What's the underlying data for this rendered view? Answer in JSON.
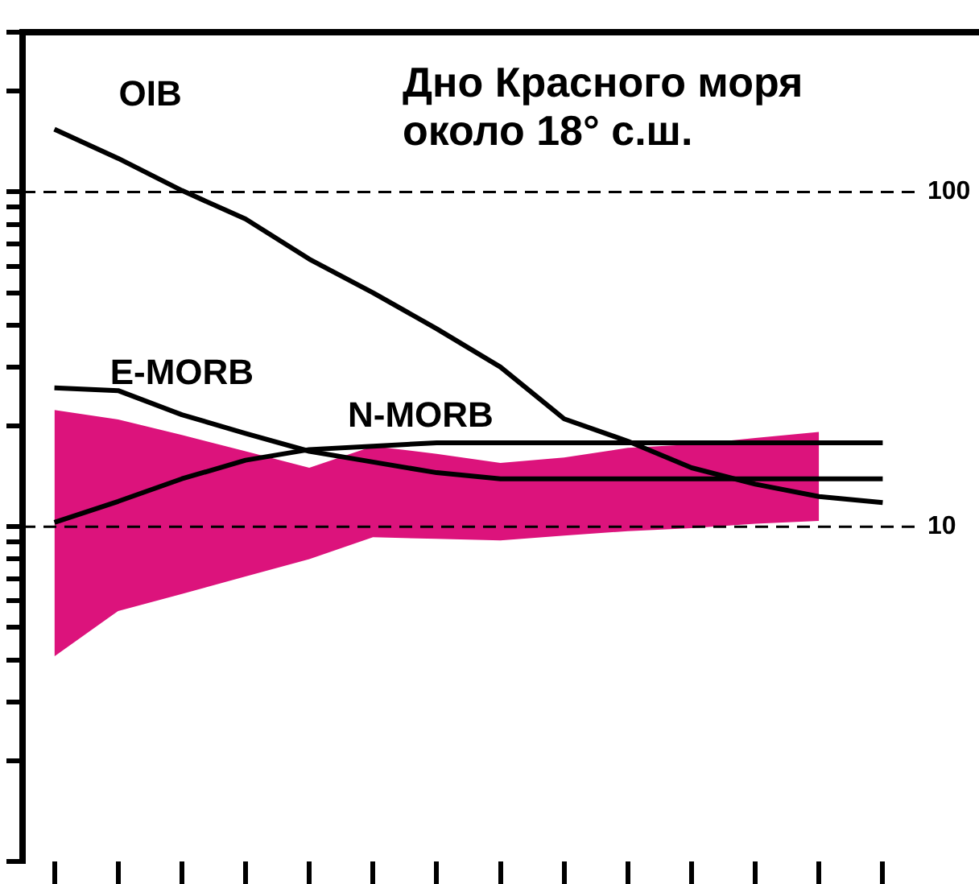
{
  "chart_data": {
    "type": "line",
    "title": "Дно Красного моря около 18° с.ш.",
    "categories": [
      null,
      null,
      null,
      null,
      null,
      null,
      null,
      null,
      null,
      null,
      null,
      null,
      null,
      null
    ],
    "log": "y",
    "ylim": [
      1,
      300
    ],
    "yticks": [
      {
        "value": 1,
        "label": null
      },
      {
        "value": 2,
        "label": null
      },
      {
        "value": 3,
        "label": null
      },
      {
        "value": 4,
        "label": null
      },
      {
        "value": 5,
        "label": null
      },
      {
        "value": 6,
        "label": null
      },
      {
        "value": 7,
        "label": null
      },
      {
        "value": 8,
        "label": null
      },
      {
        "value": 9,
        "label": null
      },
      10,
      {
        "value": 20,
        "label": null
      },
      {
        "value": 30,
        "label": null
      },
      {
        "value": 40,
        "label": null
      },
      {
        "value": 50,
        "label": null
      },
      {
        "value": 60,
        "label": null
      },
      {
        "value": 70,
        "label": null
      },
      {
        "value": 80,
        "label": null
      },
      {
        "value": 90,
        "label": null
      },
      100,
      {
        "value": 200,
        "label": null
      },
      {
        "value": 300,
        "label": null
      }
    ],
    "tick_labels": "y",
    "ref_lines": [
      {
        "axis": "y",
        "value": 10,
        "label": null,
        "line_style": "dashed",
        "color": "#000000"
      },
      {
        "axis": "y",
        "value": 100,
        "label": null,
        "line_style": "dashed",
        "color": "#000000"
      }
    ],
    "marker": "none",
    "line_style": "solid",
    "legend": false,
    "grid": false,
    "series": [
      {
        "type": "area",
        "color": "#dc137c",
        "values": [
          null,
          null,
          null,
          null,
          null,
          null,
          null,
          null,
          null,
          null,
          null,
          null,
          null,
          null
        ],
        "lower": [
          4.1,
          5.6,
          6.3,
          7.1,
          8.0,
          9.3,
          9.2,
          9.1,
          9.4,
          9.7,
          9.9,
          10.2,
          10.4,
          null
        ],
        "upper": [
          22.3,
          20.9,
          18.8,
          16.8,
          15.0,
          17.4,
          16.5,
          15.5,
          16.1,
          17.2,
          17.6,
          18.4,
          19.2,
          null
        ]
      },
      {
        "name": "OIB",
        "color": "#000000",
        "values": [
          154,
          126,
          101,
          83,
          63,
          50,
          39,
          30,
          21,
          18,
          15,
          13.4,
          12.3,
          11.8
        ]
      },
      {
        "name": "E-MORB",
        "color": "#000000",
        "values": [
          26,
          25.5,
          21.6,
          19,
          16.8,
          15.6,
          14.5,
          13.9,
          13.9,
          13.9,
          13.9,
          13.9,
          13.9,
          13.9
        ]
      },
      {
        "name": "N-MORB",
        "color": "#000000",
        "values": [
          10.3,
          11.9,
          13.9,
          15.8,
          17,
          17.4,
          17.8,
          17.8,
          17.8,
          17.8,
          17.8,
          17.8,
          17.8,
          17.8
        ]
      }
    ]
  }
}
